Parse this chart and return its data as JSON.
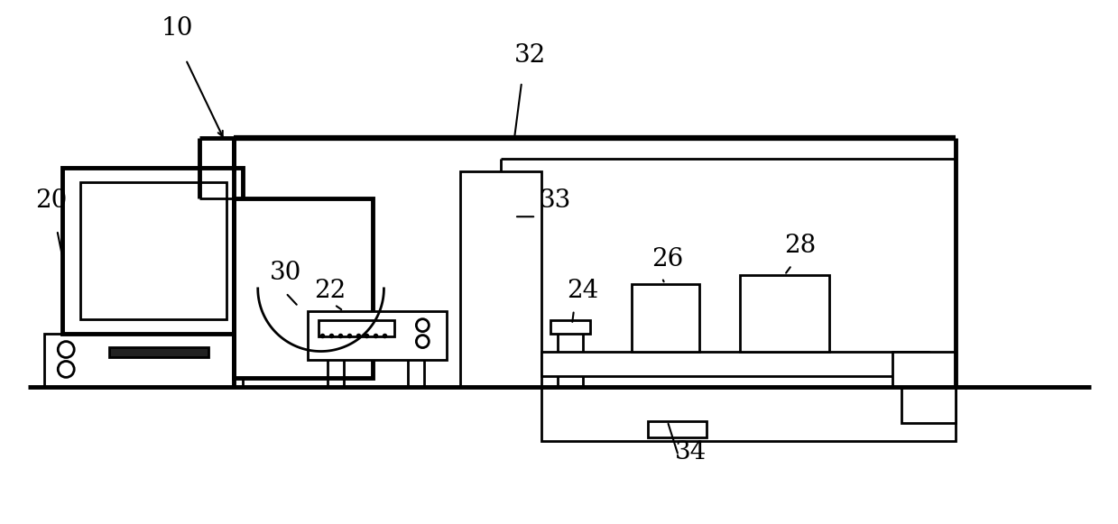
{
  "bg_color": "#ffffff",
  "lc": "#000000",
  "lw": 2.0,
  "tlw": 3.5,
  "figsize": [
    12.39,
    5.81
  ],
  "dpi": 100
}
